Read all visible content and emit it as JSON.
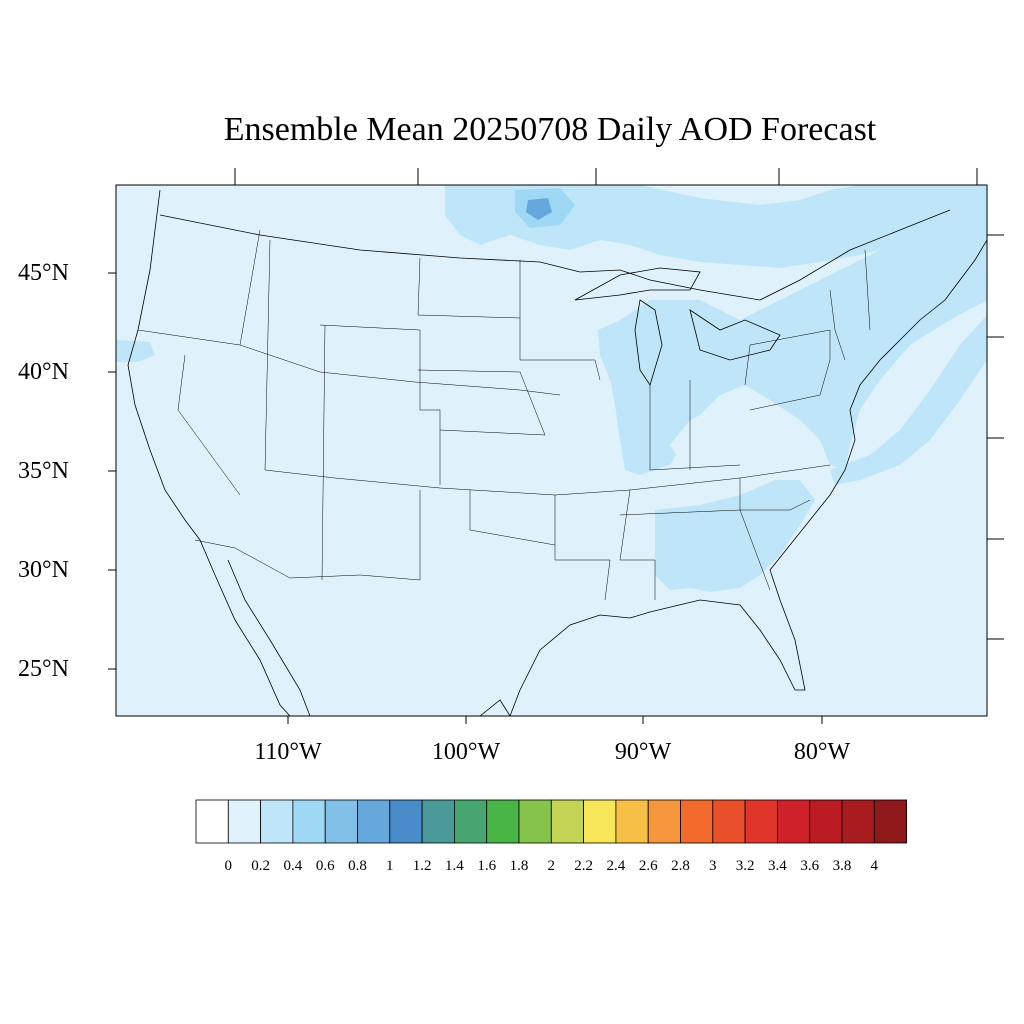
{
  "title": "Ensemble Mean 20250708 Daily AOD Forecast",
  "map": {
    "region": "Contiguous United States",
    "background_color": "#dff2fb",
    "latitude_labels": [
      "45°N",
      "40°N",
      "35°N",
      "30°N",
      "25°N"
    ],
    "longitude_labels": [
      "110°W",
      "100°W",
      "90°W",
      "80°W"
    ]
  },
  "colorbar": {
    "labels": [
      "0",
      "0.2",
      "0.4",
      "0.6",
      "0.8",
      "1",
      "1.2",
      "1.4",
      "1.6",
      "1.8",
      "2",
      "2.2",
      "2.4",
      "2.6",
      "2.8",
      "3",
      "3.2",
      "3.4",
      "3.6",
      "3.8",
      "4"
    ],
    "colors": [
      "#ffffff",
      "#dff2fb",
      "#bfe6f8",
      "#9fd8f4",
      "#83c0e8",
      "#66a7dc",
      "#4a8bc9",
      "#4a9a9a",
      "#47a670",
      "#49b547",
      "#86c34b",
      "#c4d556",
      "#f7e658",
      "#f8bf46",
      "#f7973d",
      "#f26a2c",
      "#ea4f2b",
      "#e0352b",
      "#cf2129",
      "#bb1c23",
      "#a81b1f",
      "#8e181a"
    ]
  }
}
